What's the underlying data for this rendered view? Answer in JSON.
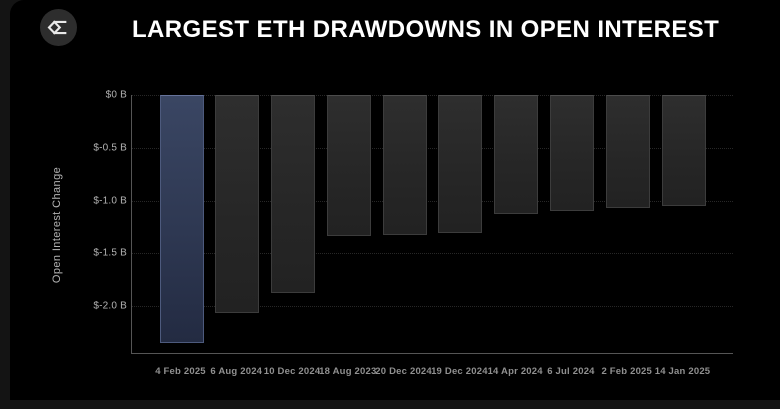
{
  "header": {
    "title": "LARGEST ETH DRAWDOWNS IN OPEN INTEREST",
    "logo": "sigma-diamond-logo"
  },
  "chart_data": {
    "type": "bar",
    "title": "LARGEST ETH DRAWDOWNS IN OPEN INTEREST",
    "xlabel": "",
    "ylabel": "Open Interest Change",
    "unit": "billions USD",
    "categories": [
      "4 Feb 2025",
      "6 Aug 2024",
      "10 Dec 2024",
      "18 Aug 2023",
      "20 Dec 2024",
      "19 Dec 2024",
      "14 Apr 2024",
      "6 Jul 2024",
      "2 Feb 2025",
      "14 Jan 2025"
    ],
    "values": [
      -2.35,
      -2.07,
      -1.88,
      -1.34,
      -1.33,
      -1.31,
      -1.13,
      -1.1,
      -1.07,
      -1.05
    ],
    "highlight_index": 0,
    "y_ticks": [
      "$0 B",
      "$-0.5 B",
      "$-1.0 B",
      "$-1.5 B",
      "$-2.0 B"
    ],
    "y_tick_values": [
      0,
      -0.5,
      -1.0,
      -1.5,
      -2.0
    ],
    "ylim": [
      0,
      -2.45
    ],
    "grid": "horizontal-dotted",
    "legend": "none",
    "colors": {
      "background": "#000000",
      "bar": "#282828",
      "highlight_bar": "#35425f",
      "axis": "#555555",
      "tick_label": "#b3b3b3",
      "category_label": "#909090",
      "title": "#ffffff"
    }
  }
}
